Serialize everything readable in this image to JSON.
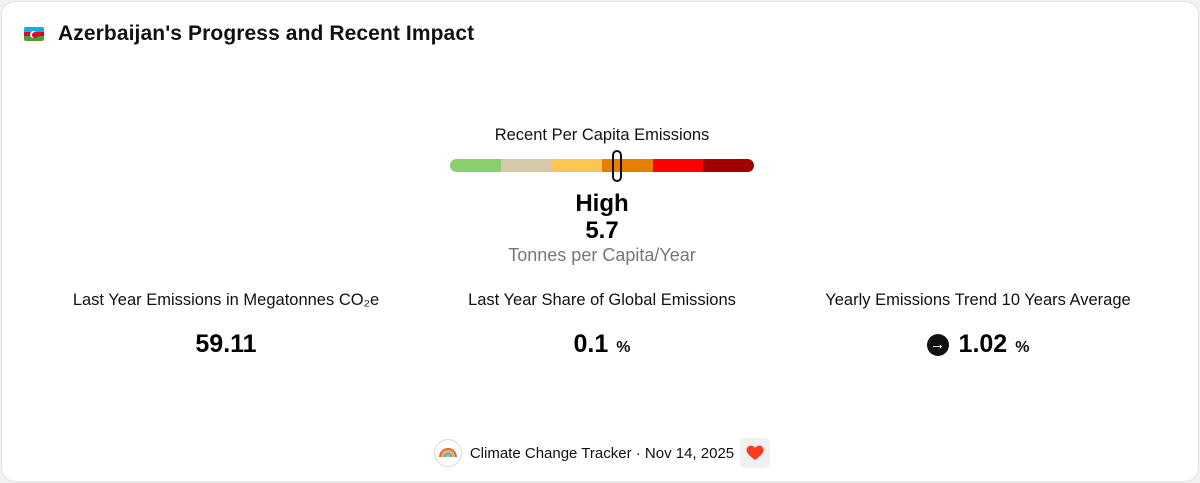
{
  "header": {
    "title": "Azerbaijan's Progress and Recent Impact",
    "flag_colors": [
      "#00b5e2",
      "#e4002b",
      "#509e2f"
    ]
  },
  "gauge": {
    "label": "Recent Per Capita Emissions",
    "level": "High",
    "value": "5.7",
    "unit": "Tonnes per Capita/Year",
    "marker_fraction": 0.55,
    "segment_colors": [
      "#8ccf6f",
      "#d7c9a7",
      "#fcc653",
      "#e67e00",
      "#ff0000",
      "#a30000"
    ]
  },
  "stats": [
    {
      "label": "Last Year Emissions in Megatonnes CO₂e",
      "value": "59.11",
      "suffix": ""
    },
    {
      "label": "Last Year Share of Global Emissions",
      "value": "0.1",
      "suffix": "%"
    },
    {
      "label": "Yearly Emissions Trend 10 Years Average",
      "value": "1.02",
      "suffix": "%",
      "icon": "arrow-right-circle-icon"
    }
  ],
  "footer": {
    "source": "Climate Change Tracker · Nov 14, 2025",
    "logo_icon": "rainbow-logo-icon",
    "heart_icon": "heart-icon",
    "heart_color": "#ff3b1f"
  }
}
